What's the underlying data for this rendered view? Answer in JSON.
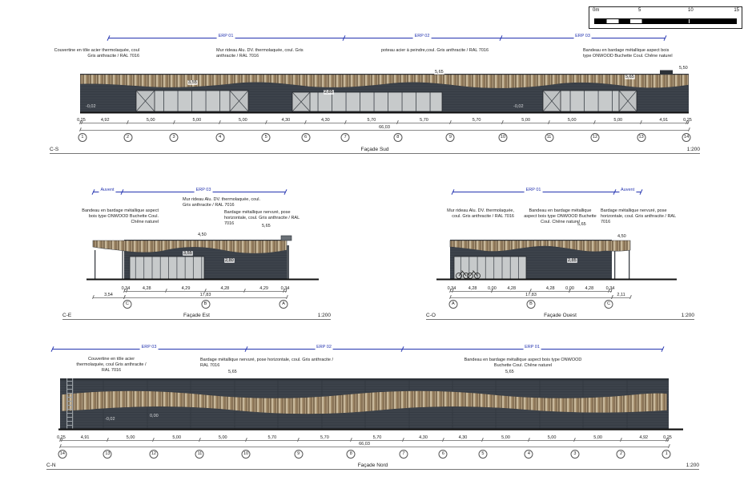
{
  "colors": {
    "annotation_blue": "#2434b0",
    "cladding_dark": "#3d434b",
    "wood_band": "#b4a183",
    "glass": "#c7cacb",
    "ground": "#111111"
  },
  "scalebar": {
    "labels": [
      "0m",
      "5",
      "10",
      "15"
    ]
  },
  "facades": {
    "sud": {
      "code": "C-S",
      "title": "Façade Sud",
      "scale_label": "1:200",
      "erp": [
        {
          "label": "ERP 01",
          "span": 2.94
        },
        {
          "label": "ERP 02",
          "span": 1.96
        },
        {
          "label": "ERP 03",
          "span": 2.05
        }
      ],
      "notes": [
        "Couvertine en tôle acier thermolaquée, coul Gris anthracite / RAL 7016",
        "Mur rideau Alu. DV. thermolaquée, coul. Gris anthracite / RAL 7016",
        "poteau acier à peindre,coul. Gris anthracite / RAL 7016",
        "Bandeau en bardage métallique aspect bois type ONWOOD Buchette Coul. Chêne naturel"
      ],
      "marks": {
        "eave1": "5,65",
        "eave2": "5,65",
        "ridge": "5,50",
        "glass1": "3,55",
        "glass2": "2,85",
        "level1": "-0,02",
        "level2": "-0,02"
      },
      "dims": [
        "0,25",
        "4,92",
        "5,00",
        "5,00",
        "5,00",
        "4,30",
        "4,30",
        "5,70",
        "5,70",
        "5,70",
        "5,00",
        "5,00",
        "5,00",
        "4,91",
        "0,25"
      ],
      "total_row": [
        "66,03"
      ],
      "bubbles": [
        {
          "label": "1",
          "b": 1
        },
        {
          "label": "2",
          "b": 2
        },
        {
          "label": "3",
          "b": 3
        },
        {
          "label": "4",
          "b": 4
        },
        {
          "label": "5",
          "b": 5
        },
        {
          "label": "6",
          "b": 6
        },
        {
          "label": "7",
          "b": 7
        },
        {
          "label": "8",
          "b": 8
        },
        {
          "label": "9",
          "b": 9
        },
        {
          "label": "10",
          "b": 10
        },
        {
          "label": "11",
          "b": 11
        },
        {
          "label": "12",
          "b": 12
        },
        {
          "label": "13",
          "b": 13
        },
        {
          "label": "14",
          "b": 14
        }
      ]
    },
    "est": {
      "code": "C-E",
      "title": "Façade Est",
      "scale_label": "1:200",
      "erp": [
        {
          "label": "Auvent",
          "span": 1.5
        },
        {
          "label": "ERP 03",
          "span": 8.5
        }
      ],
      "notes": [
        "Bandeau en bardage métallique aspect bois type ONWOOD Buchette Coul. Chêne naturel",
        "Mur rideau Alu. DV. thermolaquée, coul. Gris anthracite / RAL 7016",
        "Bardage métallique nervuré, pose horizontale, coul. Gris anthracite / RAL 7016"
      ],
      "marks": {
        "eave": "5,65",
        "top": "4,50",
        "glass": "3,55",
        "door": "2,80"
      },
      "dims": [
        "0,34",
        "4,28",
        "4,29",
        "4,28",
        "4,29",
        "0,34"
      ],
      "canopy_row": [
        "3,54"
      ],
      "total_row": [
        "17,83"
      ],
      "bubbles": [
        {
          "label": "C",
          "b": 1
        },
        {
          "label": "B",
          "b": 3
        },
        {
          "label": "A",
          "b": 5
        }
      ]
    },
    "ouest": {
      "code": "C-O",
      "title": "Façade Ouest",
      "scale_label": "1:200",
      "erp": [
        {
          "label": "ERP 01",
          "span": 8.6
        },
        {
          "label": "Auvent",
          "span": 1.4
        }
      ],
      "notes": [
        "Mur rideau Alu. DV. thermolaquée, coul. Gris anthracite / RAL 7016",
        "Bandeau en bardage métallique aspect bois type ONWOOD Buchette Coul. Chêne naturel",
        "Bardage métallique nervuré, pose horizontale, coul. Gris anthracite / RAL 7016"
      ],
      "marks": {
        "eave": "5,65",
        "top": "4,50",
        "glass": "2,85"
      },
      "dims": [
        "0,34",
        "4,28",
        "0,00",
        "4,28",
        "4,28",
        "0,00",
        "4,28",
        "0,34"
      ],
      "canopy_row": [
        "2,11"
      ],
      "total_row": [
        "17,83"
      ],
      "bubbles": [
        {
          "label": "A",
          "b": 1
        },
        {
          "label": "B",
          "b": 4
        },
        {
          "label": "C",
          "b": 7
        }
      ]
    },
    "nord": {
      "code": "C-N",
      "title": "Façade Nord",
      "scale_label": "1:200",
      "erp": [
        {
          "label": "ERP 03",
          "span": 2.42
        },
        {
          "label": "ERP 02",
          "span": 1.95
        },
        {
          "label": "ERP 01",
          "span": 3.25
        }
      ],
      "notes": [
        "Couvertine en tôle acier thermolaquée, coul Gris anthracite / RAL 7016",
        "Bardage métallique nervuré, pose horizontale, coul. Gris anthracite / RAL 7016",
        "Bandeau en bardage métallique aspect bois type ONWOOD Buchette Coul. Chêne naturel"
      ],
      "marks": {
        "eave1": "5,65",
        "eave2": "5,65",
        "level1": "-0,02",
        "level2": "0,00"
      },
      "dims": [
        "0,25",
        "4,91",
        "5,00",
        "5,00",
        "5,00",
        "5,70",
        "5,70",
        "5,70",
        "4,30",
        "4,30",
        "5,00",
        "5,00",
        "5,00",
        "4,92",
        "0,25"
      ],
      "total_row": [
        "66,03"
      ],
      "bubbles": [
        {
          "label": "14",
          "b": 1
        },
        {
          "label": "13",
          "b": 2
        },
        {
          "label": "12",
          "b": 3
        },
        {
          "label": "11",
          "b": 4
        },
        {
          "label": "10",
          "b": 5
        },
        {
          "label": "9",
          "b": 6
        },
        {
          "label": "8",
          "b": 7
        },
        {
          "label": "7",
          "b": 8
        },
        {
          "label": "6",
          "b": 9
        },
        {
          "label": "5",
          "b": 10
        },
        {
          "label": "4",
          "b": 11
        },
        {
          "label": "3",
          "b": 12
        },
        {
          "label": "2",
          "b": 13
        },
        {
          "label": "1",
          "b": 14
        }
      ]
    }
  }
}
